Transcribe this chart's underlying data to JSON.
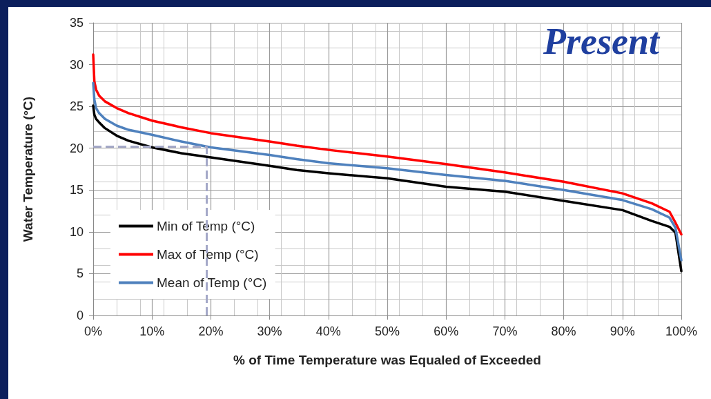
{
  "chart_data": {
    "type": "line",
    "title": "Present",
    "xlabel": "% of Time Temperature was Equaled of Exceeded",
    "ylabel": "Water Temperature (°C)",
    "x": [
      0,
      0.2,
      0.5,
      1,
      2,
      4,
      6,
      10,
      15,
      20,
      30,
      34.6,
      40,
      50,
      60,
      70,
      80,
      90,
      95,
      98,
      99,
      100
    ],
    "series": [
      {
        "name": "Min of Temp (°C)",
        "color": "#000000",
        "values": [
          25.1,
          24.0,
          23.5,
          23.1,
          22.4,
          21.5,
          20.9,
          20.1,
          19.4,
          18.9,
          17.9,
          17.4,
          17.0,
          16.4,
          15.4,
          14.8,
          13.7,
          12.6,
          11.3,
          10.6,
          9.9,
          5.3
        ]
      },
      {
        "name": "Max of Temp (°C)",
        "color": "#ff0000",
        "values": [
          31.2,
          28.0,
          27.0,
          26.3,
          25.6,
          24.8,
          24.2,
          23.3,
          22.5,
          21.8,
          20.8,
          20.3,
          19.8,
          19.0,
          18.1,
          17.1,
          16.0,
          14.6,
          13.4,
          12.4,
          11.1,
          9.7
        ]
      },
      {
        "name": "Mean of Temp (°C)",
        "color": "#4f81bd",
        "values": [
          27.8,
          25.8,
          24.8,
          24.2,
          23.5,
          22.7,
          22.2,
          21.6,
          20.8,
          20.1,
          19.2,
          18.7,
          18.2,
          17.6,
          16.8,
          16.1,
          15.0,
          13.8,
          12.7,
          11.7,
          10.5,
          6.6
        ]
      }
    ],
    "xlim": [
      0,
      100
    ],
    "xticks": [
      {
        "value": 0,
        "label": "0%"
      },
      {
        "value": 10,
        "label": "10%"
      },
      {
        "value": 20,
        "label": "20%"
      },
      {
        "value": 30,
        "label": "30%"
      },
      {
        "value": 40,
        "label": "40%"
      },
      {
        "value": 50,
        "label": "50%"
      },
      {
        "value": 60,
        "label": "60%"
      },
      {
        "value": 70,
        "label": "70%"
      },
      {
        "value": 80,
        "label": "80%"
      },
      {
        "value": 90,
        "label": "90%"
      },
      {
        "value": 100,
        "label": "100%"
      }
    ],
    "ylim": [
      0,
      35
    ],
    "yticks": [
      0,
      5,
      10,
      15,
      20,
      25,
      30,
      35
    ],
    "ref_lines": [
      {
        "axis": "x",
        "value": 19.3,
        "color": "#a4a8c8",
        "line_style": "dashed"
      },
      {
        "axis": "y",
        "value": 20.2,
        "color": "#a4a8c8",
        "line_style": "dashed"
      }
    ],
    "grid": true,
    "legend": "bottom left",
    "marker": "none",
    "line_style": "solid"
  }
}
